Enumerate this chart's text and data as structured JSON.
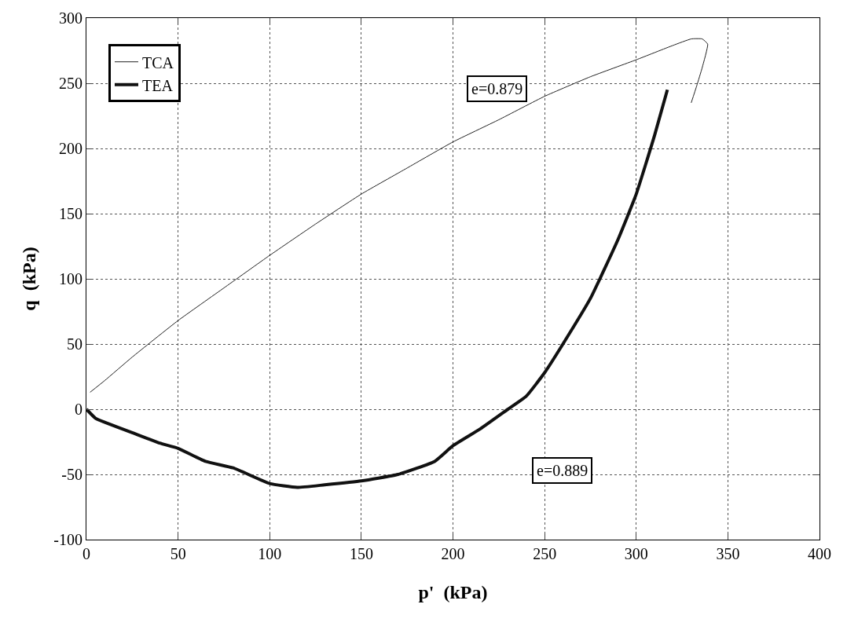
{
  "chart_data": {
    "type": "line",
    "xlabel": "p'  (kPa)",
    "ylabel": "q  (kPa)",
    "xlim": [
      0,
      400
    ],
    "xticks": [
      0,
      50,
      100,
      150,
      200,
      250,
      300,
      350,
      400
    ],
    "ylim": [
      -100,
      300
    ],
    "yticks": [
      -100,
      -50,
      0,
      50,
      100,
      150,
      200,
      250,
      300
    ],
    "grid": true,
    "legend": "top left",
    "line_style": "solid",
    "marker": "none",
    "series": [
      {
        "name": "TCA",
        "color": "#222222",
        "x": [
          2,
          10,
          25,
          50,
          75,
          100,
          125,
          150,
          175,
          200,
          225,
          250,
          275,
          300,
          320,
          330,
          336,
          339,
          336,
          333,
          330
        ],
        "values": [
          13,
          22,
          40,
          68,
          93,
          118,
          142,
          165,
          185,
          205,
          222,
          240,
          255,
          268,
          279,
          284,
          284,
          280,
          262,
          248,
          235
        ]
      },
      {
        "name": "TEA",
        "color": "#111111",
        "x": [
          0,
          5,
          10,
          25,
          40,
          50,
          65,
          80,
          100,
          115,
          130,
          150,
          170,
          190,
          200,
          215,
          230,
          240,
          250,
          260,
          275,
          290,
          300,
          310,
          317
        ],
        "values": [
          0,
          -7,
          -10,
          -18,
          -26,
          -30,
          -40,
          -45,
          -57,
          -60,
          -58,
          -55,
          -50,
          -40,
          -28,
          -15,
          0,
          10,
          28,
          50,
          85,
          130,
          165,
          210,
          245
        ]
      }
    ],
    "annotations": [
      "e=0.879",
      "e=0.889"
    ]
  }
}
